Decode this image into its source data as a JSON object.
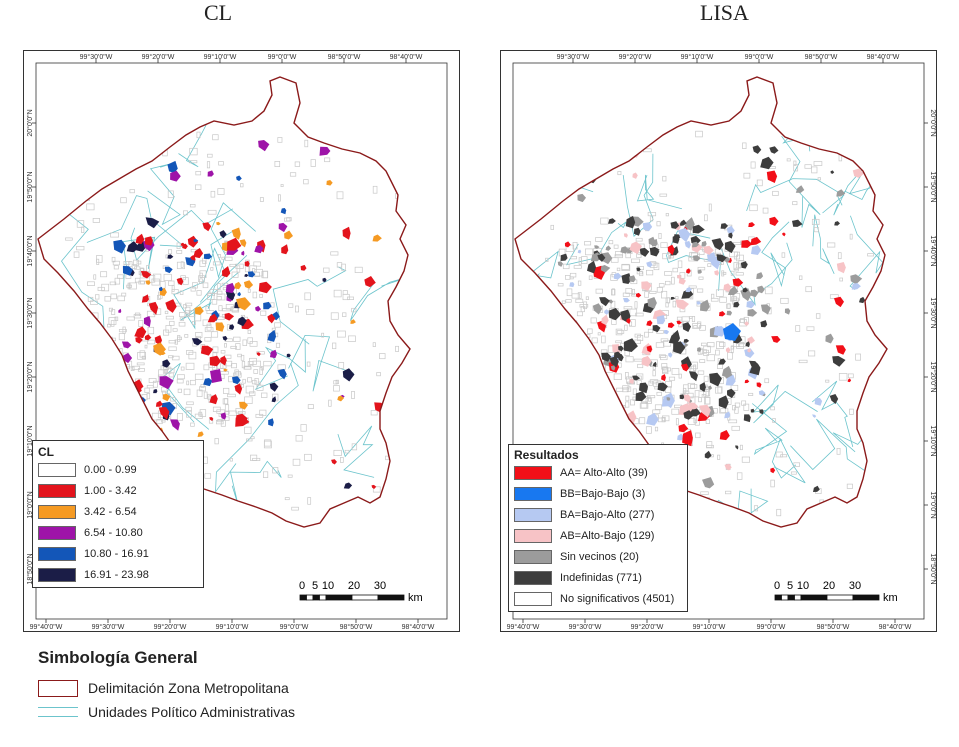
{
  "panels": [
    {
      "title": "CL"
    },
    {
      "title": "LISA"
    }
  ],
  "coords": {
    "top": [
      "99°30'0\"W",
      "99°20'0\"W",
      "99°10'0\"W",
      "99°0'0\"W",
      "98°50'0\"W",
      "98°40'0\"W"
    ],
    "bottom": [
      "99°40'0\"W",
      "99°30'0\"W",
      "99°20'0\"W",
      "99°10'0\"W",
      "99°0'0\"W",
      "98°50'0\"W",
      "98°40'0\"W"
    ],
    "left": [
      "20°0'0\"N",
      "19°50'0\"N",
      "19°40'0\"N",
      "19°30'0\"N",
      "19°20'0\"N",
      "19°10'0\"N",
      "19°0'0\"N",
      "18°50'0\"N"
    ],
    "right": [
      "20°0'0\"N",
      "19°50'0\"N",
      "19°40'0\"N",
      "19°30'0\"N",
      "19°20'0\"N",
      "19°10'0\"N",
      "19°0'0\"N",
      "18°50'0\"N"
    ]
  },
  "cl_legend": {
    "title": "CL",
    "items": [
      {
        "label": "0.00 - 0.99",
        "color": "#ffffff"
      },
      {
        "label": "1.00 - 3.42",
        "color": "#e3141c"
      },
      {
        "label": "3.42 - 6.54",
        "color": "#f59a23"
      },
      {
        "label": "6.54 - 10.80",
        "color": "#9e14a8"
      },
      {
        "label": "10.80 - 16.91",
        "color": "#1356b8"
      },
      {
        "label": "16.91 - 23.98",
        "color": "#1b1d47"
      }
    ]
  },
  "lisa_legend": {
    "title": "Resultados",
    "items": [
      {
        "label": "AA= Alto-Alto (39)",
        "color": "#f20f18"
      },
      {
        "label": "BB=Bajo-Bajo (3)",
        "color": "#1878f0"
      },
      {
        "label": "BA=Bajo-Alto (277)",
        "color": "#b6c9f2"
      },
      {
        "label": "AB=Alto-Bajo (129)",
        "color": "#f7c3c6"
      },
      {
        "label": "Sin vecinos (20)",
        "color": "#9c9c9c"
      },
      {
        "label": "Indefinidas (771)",
        "color": "#3d3d3d"
      },
      {
        "label": "No significativos (4501)",
        "color": "#ffffff"
      }
    ]
  },
  "scale": {
    "ticks": [
      "0",
      "5",
      "10",
      "20",
      "30"
    ],
    "unit": "km"
  },
  "general": {
    "title": "Simbología General",
    "items": [
      {
        "label": "Delimitación Zona Metropolitana",
        "color": "#8b1a1a"
      },
      {
        "label": "Unidades Político Administrativas",
        "color": "#6cc4cc"
      }
    ]
  },
  "colors": {
    "boundary": "#8b1a1a",
    "units": "#6cc4cc",
    "blocks": "#c8c8c8"
  }
}
